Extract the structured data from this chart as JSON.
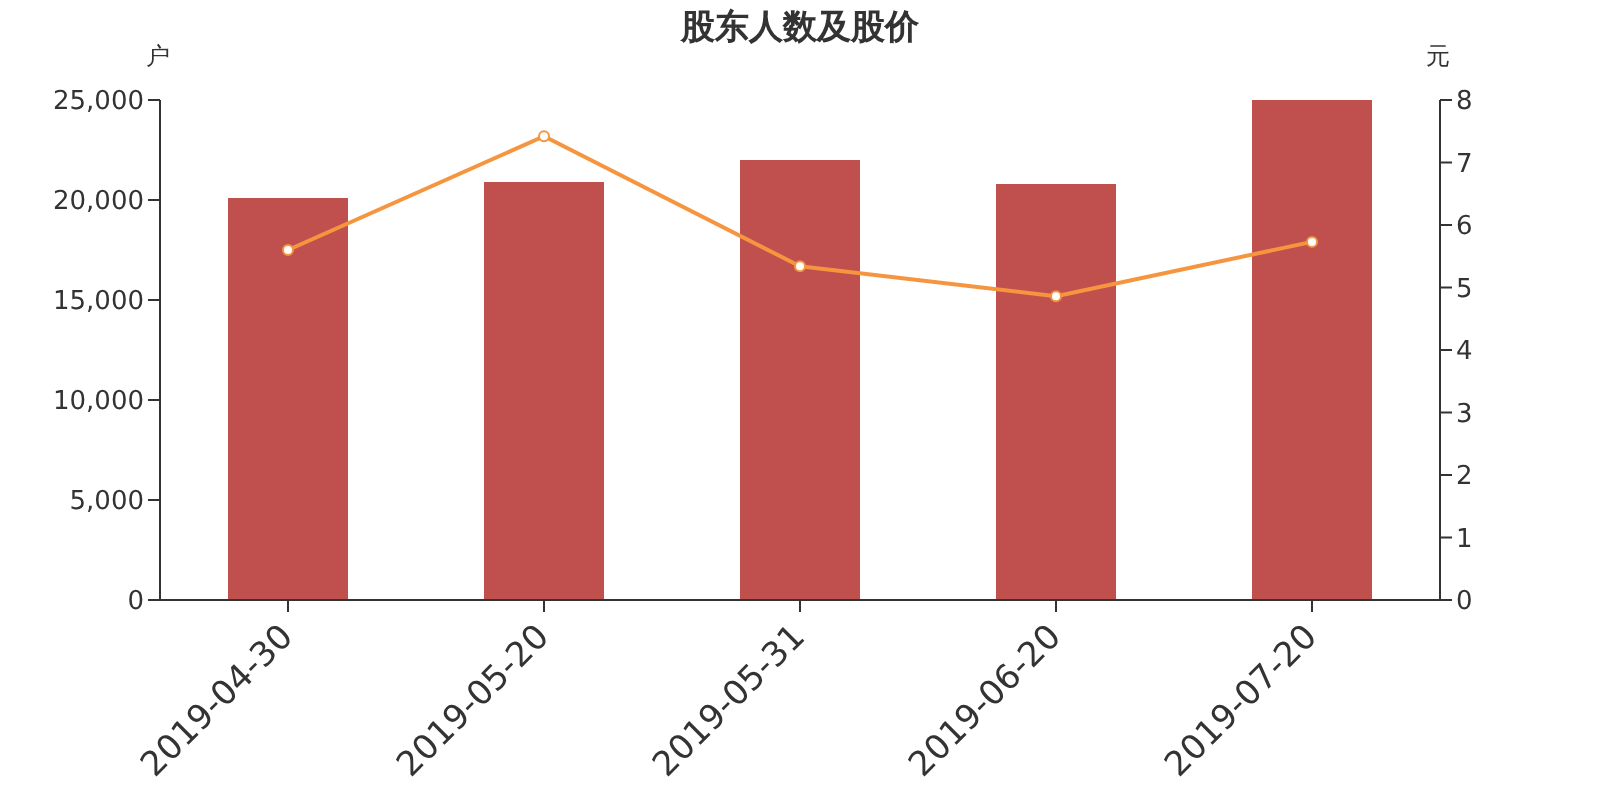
{
  "chart_data": {
    "type": "bar",
    "title": "股东人数及股价",
    "ylabel": "户",
    "y2label": "元",
    "categories": [
      "2019-04-30",
      "2019-05-20",
      "2019-05-31",
      "2019-06-20",
      "2019-07-20"
    ],
    "series": [
      {
        "color": "#c0504d",
        "values": [
          20100,
          20900,
          22000,
          20800,
          25000
        ]
      },
      {
        "type": "line",
        "axis": "y2",
        "color": "#f5953f",
        "marker": "circle",
        "values": [
          5.6,
          7.42,
          5.34,
          4.86,
          5.73
        ]
      }
    ],
    "ylim": [
      0,
      25000
    ],
    "yticks": [
      {
        "value": 0,
        "label": "0"
      },
      {
        "value": 5000,
        "label": "5,000"
      },
      {
        "value": 10000,
        "label": "10,000"
      },
      {
        "value": 15000,
        "label": "15,000"
      },
      {
        "value": 20000,
        "label": "20,000"
      },
      {
        "value": 25000,
        "label": "25,000"
      }
    ],
    "y2lim": [
      0,
      8
    ],
    "y2ticks": [
      0,
      1,
      2,
      3,
      4,
      5,
      6,
      7,
      8
    ],
    "grid": false,
    "legend": false
  }
}
